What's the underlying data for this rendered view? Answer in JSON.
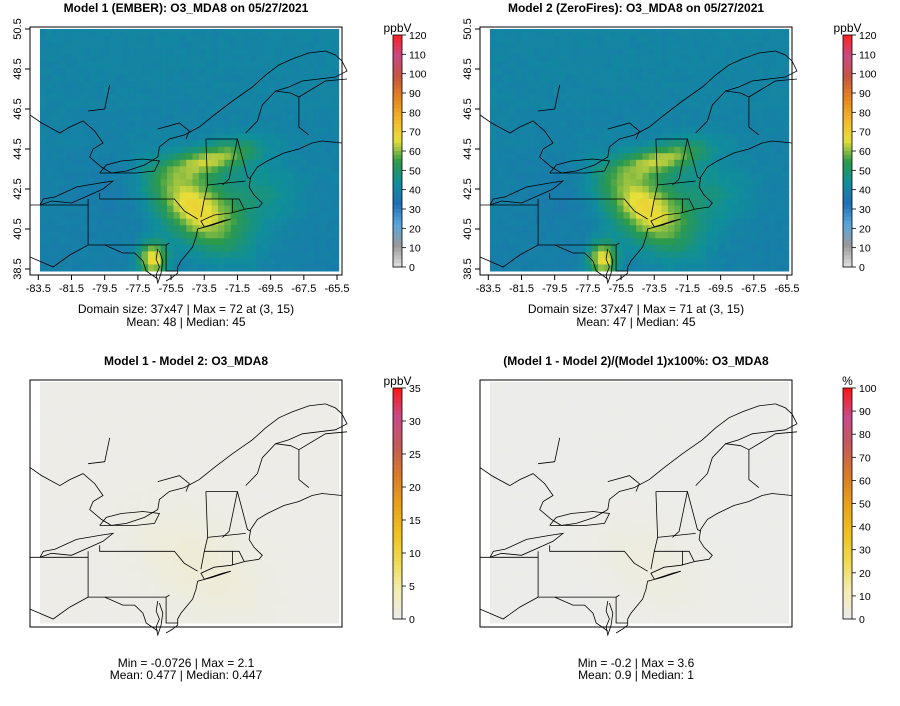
{
  "chart_data": [
    {
      "type": "heatmap",
      "title": "Model 1 (EMBER): O3_MDA8 on 05/27/2021",
      "xticks": [
        "-83.5",
        "-81.5",
        "-79.5",
        "-77.5",
        "-75.5",
        "-73.5",
        "-71.5",
        "-69.5",
        "-67.5",
        "-65.5"
      ],
      "yticks": [
        "38.5",
        "40.5",
        "42.5",
        "44.5",
        "46.5",
        "48.5",
        "50.5"
      ],
      "xlim": [
        -84,
        -65.2
      ],
      "ylim": [
        38.2,
        50.6
      ],
      "colorbar": {
        "unit": "ppbV",
        "min": 0,
        "max": 120,
        "ticks": [
          "0",
          "10",
          "20",
          "30",
          "40",
          "50",
          "60",
          "70",
          "80",
          "90",
          "100",
          "110",
          "120"
        ],
        "stops": [
          "#e0e0e0",
          "#9a9a9a",
          "#5aa6dc",
          "#1f6fb5",
          "#0f8f9a",
          "#2d9a4a",
          "#e8df3a",
          "#f2b62a",
          "#e6841f",
          "#c4573e",
          "#c84a84",
          "#ff2020"
        ]
      },
      "stat_line1": "Domain size: 37x47 | Max = 72 at (3, 15)",
      "stat_line2": "Mean: 48 |  Median: 45",
      "field": {
        "base": 40,
        "plume_peak": 72
      }
    },
    {
      "type": "heatmap",
      "title": "Model 2 (ZeroFires): O3_MDA8 on 05/27/2021",
      "xticks": [
        "-83.5",
        "-81.5",
        "-79.5",
        "-77.5",
        "-75.5",
        "-73.5",
        "-71.5",
        "-69.5",
        "-67.5",
        "-65.5"
      ],
      "yticks": [
        "38.5",
        "40.5",
        "42.5",
        "44.5",
        "46.5",
        "48.5",
        "50.5"
      ],
      "xlim": [
        -84,
        -65.2
      ],
      "ylim": [
        38.2,
        50.6
      ],
      "colorbar": {
        "unit": "ppbV",
        "min": 0,
        "max": 120,
        "ticks": [
          "0",
          "10",
          "20",
          "30",
          "40",
          "50",
          "60",
          "70",
          "80",
          "90",
          "100",
          "110",
          "120"
        ],
        "stops": [
          "#e0e0e0",
          "#9a9a9a",
          "#5aa6dc",
          "#1f6fb5",
          "#0f8f9a",
          "#2d9a4a",
          "#e8df3a",
          "#f2b62a",
          "#e6841f",
          "#c4573e",
          "#c84a84",
          "#ff2020"
        ]
      },
      "stat_line1": "Domain size: 37x47 | Max = 71 at (3, 15)",
      "stat_line2": "Mean: 47 |  Median: 45",
      "field": {
        "base": 40,
        "plume_peak": 71
      }
    },
    {
      "type": "heatmap",
      "title": "Model 1 - Model 2: O3_MDA8",
      "xticks": [],
      "yticks": [],
      "xlim": [
        -84,
        -65.2
      ],
      "ylim": [
        38.2,
        50.6
      ],
      "colorbar": {
        "unit": "ppbV",
        "min": 0,
        "max": 35,
        "ticks": [
          "0",
          "5",
          "10",
          "15",
          "20",
          "25",
          "30",
          "35"
        ],
        "stops": [
          "#ececec",
          "#f3ecb0",
          "#f0da50",
          "#efc020",
          "#e8a01a",
          "#d87a2a",
          "#c45a5a",
          "#c84a8a",
          "#ff1515"
        ]
      },
      "stat_line1": "Min = -0.0726 | Max = 2.1",
      "stat_line2": "Mean: 0.477 |  Median: 0.447",
      "field": {
        "base": 0.3,
        "plume_peak": 2.1
      }
    },
    {
      "type": "heatmap",
      "title": "(Model 1 - Model 2)/(Model 1)x100%: O3_MDA8",
      "xticks": [],
      "yticks": [],
      "xlim": [
        -84,
        -65.2
      ],
      "ylim": [
        38.2,
        50.6
      ],
      "colorbar": {
        "unit": "%",
        "min": 0,
        "max": 100,
        "ticks": [
          "0",
          "10",
          "20",
          "30",
          "40",
          "50",
          "60",
          "70",
          "80",
          "90",
          "100"
        ],
        "stops": [
          "#ececec",
          "#f3ecb0",
          "#f0da50",
          "#efc020",
          "#e8a01a",
          "#d87a2a",
          "#c45a5a",
          "#c84a8a",
          "#ff1515"
        ]
      },
      "stat_line1": "Min = -0.2 | Max = 3.6",
      "stat_line2": "Mean: 0.9 |  Median: 1",
      "field": {
        "base": 0.5,
        "plume_peak": 3.6
      }
    }
  ]
}
